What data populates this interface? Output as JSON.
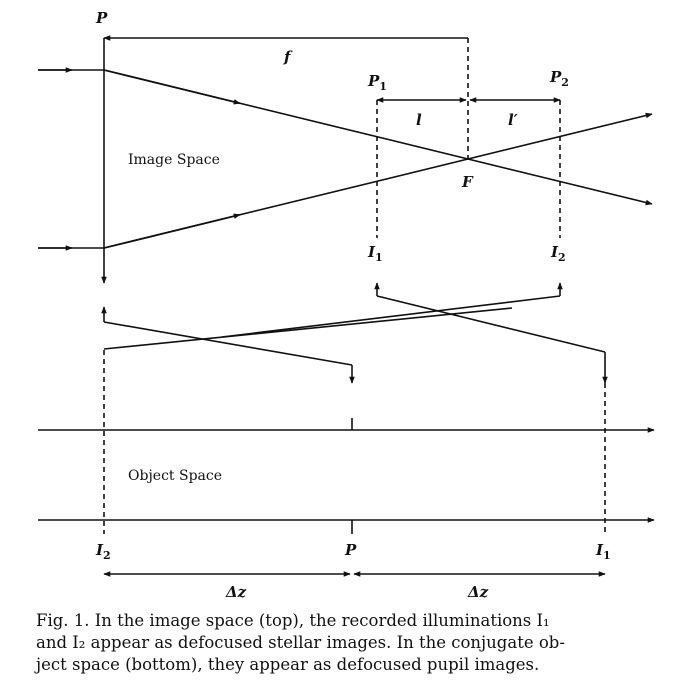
{
  "labels": {
    "p_top": "P",
    "f": "f",
    "p1_letter": "P",
    "p1_sub": "1",
    "p2_letter": "P",
    "p2_sub": "2",
    "l": "l",
    "l_prime": "l′",
    "image_space": "Image Space",
    "F": "F",
    "i1_letter": "I",
    "i1_sub": "1",
    "i2_letter": "I",
    "i2_sub": "2",
    "object_space": "Object Space",
    "bottom_i2_letter": "I",
    "bottom_i2_sub": "2",
    "bottom_p": "P",
    "bottom_i1_letter": "I",
    "bottom_i1_sub": "1",
    "dz_left": "Δz",
    "dz_right": "Δz"
  },
  "caption": {
    "line1": "Fig. 1.  In the image space (top), the recorded illuminations I₁",
    "line2": "and I₂ appear as defocused stellar images.  In the conjugate ob-",
    "line3": "ject space (bottom), they appear as defocused pupil images."
  }
}
